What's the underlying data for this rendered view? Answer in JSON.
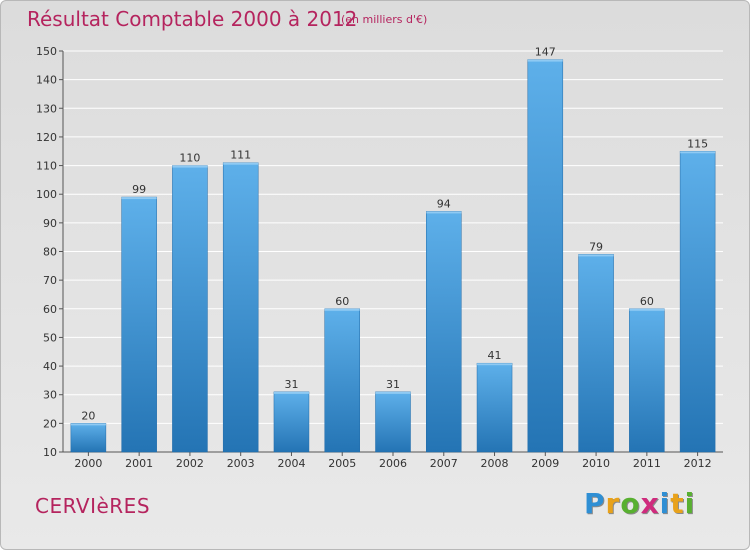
{
  "header": {
    "title": "Résultat Comptable 2000 à 2012",
    "subtitle": "(en milliers d'€)"
  },
  "footer": {
    "place": "CERVIèRES",
    "logo": "Proxiti",
    "logo_letters": [
      {
        "char": "P",
        "color": "#2f8fd4"
      },
      {
        "char": "r",
        "color": "#e8a21b"
      },
      {
        "char": "o",
        "color": "#58b030"
      },
      {
        "char": "x",
        "color": "#cf2b7d"
      },
      {
        "char": "i",
        "color": "#2f8fd4"
      },
      {
        "char": "t",
        "color": "#e8a21b"
      },
      {
        "char": "i",
        "color": "#58b030"
      }
    ]
  },
  "colors": {
    "accent": "#b5245e",
    "bar_top": "#5eb0ea",
    "bar_bottom": "#2474b4"
  },
  "chart_data": {
    "type": "bar",
    "title": "Résultat Comptable 2000 à 2012",
    "subtitle": "(en milliers d'€)",
    "categories": [
      "2000",
      "2001",
      "2002",
      "2003",
      "2004",
      "2005",
      "2006",
      "2007",
      "2008",
      "2009",
      "2010",
      "2011",
      "2012"
    ],
    "values": [
      20,
      99,
      110,
      111,
      31,
      60,
      31,
      94,
      41,
      147,
      79,
      60,
      115
    ],
    "ylim": [
      10,
      150
    ],
    "yticks": [
      10,
      20,
      30,
      40,
      50,
      60,
      70,
      80,
      90,
      100,
      110,
      120,
      130,
      140,
      150
    ],
    "grid": true,
    "data_labels": true
  }
}
